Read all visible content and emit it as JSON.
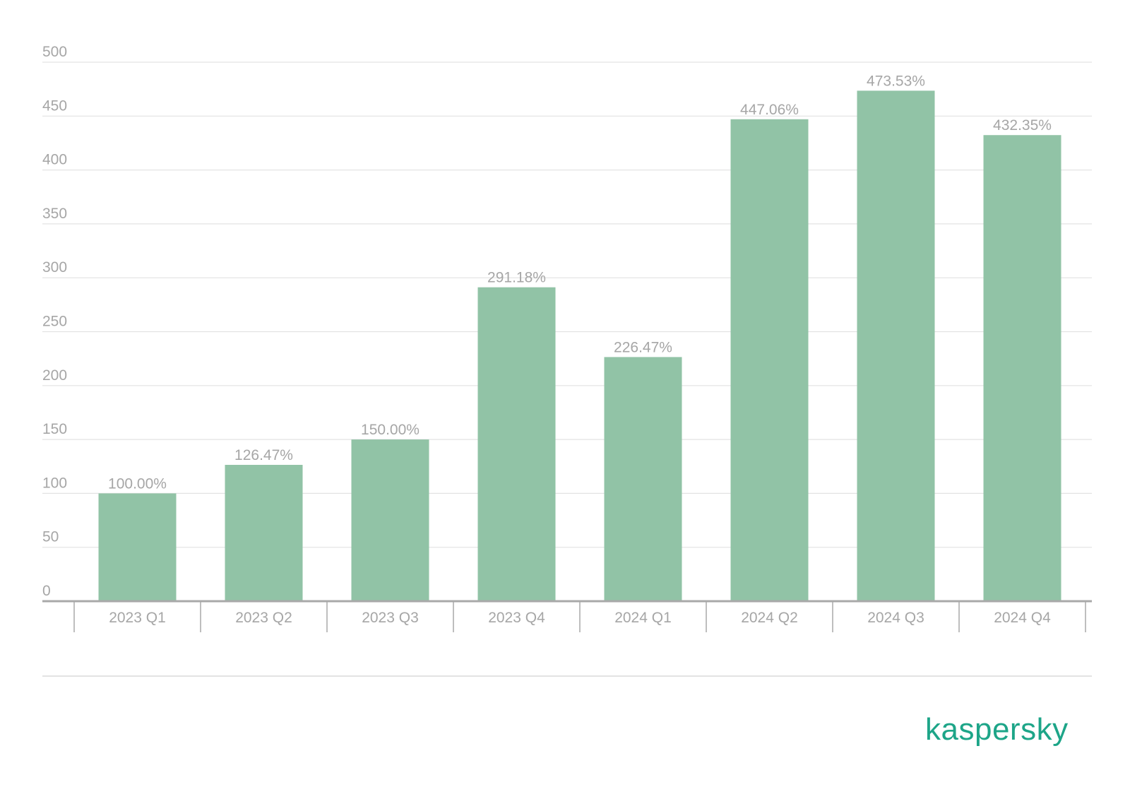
{
  "chart_data": {
    "type": "bar",
    "title": "",
    "xlabel": "",
    "ylabel": "",
    "categories": [
      "2023 Q1",
      "2023 Q2",
      "2023 Q3",
      "2023 Q4",
      "2024 Q1",
      "2024 Q2",
      "2024 Q3",
      "2024 Q4"
    ],
    "values": [
      100.0,
      126.47,
      150.0,
      291.18,
      226.47,
      447.06,
      473.53,
      432.35
    ],
    "data_labels": [
      "100.00%",
      "126.47%",
      "150.00%",
      "291.18%",
      "226.47%",
      "447.06%",
      "473.53%",
      "432.35%"
    ],
    "yticks": [
      "0",
      "50",
      "100",
      "150",
      "200",
      "250",
      "300",
      "350",
      "400",
      "450",
      "500"
    ],
    "ylim": [
      0,
      500
    ],
    "grid": true,
    "legend": "none"
  },
  "colors": {
    "bar": "#91c3a6",
    "grid": "#e3e3e3",
    "axis": "#a9a9a9",
    "label": "#a6a6a6",
    "brand": "#1da588"
  },
  "brand": {
    "logo_text": "kaspersky"
  }
}
